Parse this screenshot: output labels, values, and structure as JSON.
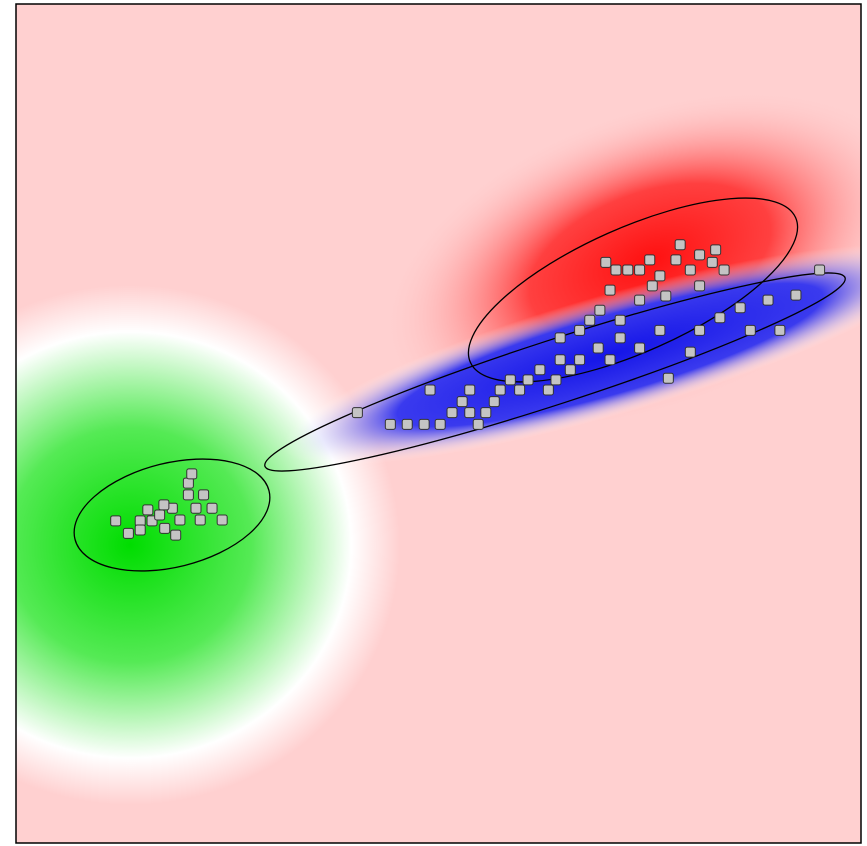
{
  "chart_data": {
    "type": "scatter",
    "x": [
      11.8,
      13.3,
      14.7,
      15.6,
      16.1,
      17.0,
      17.6,
      18.5,
      18.9,
      19.4,
      20.4,
      20.4,
      21.3,
      21.8,
      22.2,
      23.2,
      24.4,
      20.8,
      17.5,
      14.7,
      40.4,
      44.3,
      46.3,
      48.3,
      49.0,
      50.2,
      51.6,
      52.8,
      53.7,
      54.7,
      55.6,
      53.7,
      56.6,
      57.3,
      58.5,
      59.6,
      60.6,
      62.0,
      63.0,
      63.9,
      64.4,
      65.6,
      66.7,
      68.9,
      70.3,
      71.5,
      73.8,
      76.2,
      77.2,
      79.8,
      80.9,
      83.3,
      85.7,
      86.9,
      89.0,
      90.4,
      92.3,
      95.1,
      66.7,
      64.4,
      69.8,
      71.0,
      72.4,
      73.8,
      75.3,
      76.2,
      76.9,
      78.1,
      78.6,
      79.8,
      80.9,
      82.4,
      82.8,
      83.8,
      73.8,
      69.1,
      67.9,
      71.5,
      80.9,
      75.0,
      70.3
    ],
    "y": [
      38.4,
      36.9,
      38.4,
      39.7,
      38.4,
      39.1,
      37.5,
      39.9,
      36.7,
      38.5,
      41.5,
      42.9,
      39.9,
      38.5,
      41.5,
      39.9,
      38.5,
      44.0,
      40.3,
      37.3,
      51.3,
      49.9,
      49.9,
      49.9,
      54.0,
      49.9,
      51.3,
      52.6,
      51.3,
      49.9,
      51.3,
      54.0,
      52.6,
      54.0,
      55.2,
      54.0,
      55.2,
      56.4,
      54.0,
      55.2,
      57.6,
      56.4,
      57.6,
      59.0,
      57.6,
      60.2,
      59.0,
      61.1,
      55.4,
      58.5,
      61.1,
      62.6,
      63.8,
      61.1,
      64.7,
      61.1,
      65.3,
      68.3,
      61.1,
      60.2,
      69.2,
      68.3,
      68.3,
      68.3,
      66.4,
      67.6,
      65.2,
      69.5,
      71.3,
      68.3,
      66.4,
      69.2,
      70.7,
      68.3,
      64.7,
      63.5,
      62.3,
      62.3,
      70.1,
      69.5,
      65.9
    ],
    "xlim": [
      0,
      100
    ],
    "ylim": [
      0,
      100
    ],
    "color": "#c4c4c4"
  }
}
